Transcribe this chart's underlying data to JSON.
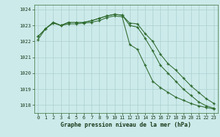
{
  "title": "Graphe pression niveau de la mer (hPa)",
  "background_color": "#cceaea",
  "grid_color": "#aacece",
  "line_color": "#2d6a2d",
  "x_values": [
    0,
    1,
    2,
    3,
    4,
    5,
    6,
    7,
    8,
    9,
    10,
    11,
    12,
    13,
    14,
    15,
    16,
    17,
    18,
    19,
    20,
    21,
    22,
    23
  ],
  "line1": [
    1022.3,
    1022.8,
    1023.2,
    1023.0,
    1023.2,
    1023.2,
    1023.2,
    1023.3,
    1023.45,
    1023.6,
    1023.7,
    1023.65,
    1023.15,
    1023.1,
    1022.5,
    1022.0,
    1021.2,
    1020.6,
    1020.2,
    1019.7,
    1019.2,
    1018.8,
    1018.4,
    1018.1
  ],
  "line2": [
    1022.3,
    1022.8,
    1023.2,
    1023.0,
    1023.2,
    1023.2,
    1023.2,
    1023.3,
    1023.45,
    1023.6,
    1023.7,
    1023.65,
    1023.0,
    1022.9,
    1022.2,
    1021.4,
    1020.5,
    1020.0,
    1019.5,
    1019.0,
    1018.6,
    1018.2,
    1017.95,
    1017.8
  ],
  "line3": [
    1022.1,
    1022.8,
    1023.15,
    1023.0,
    1023.1,
    1023.1,
    1023.15,
    1023.2,
    1023.3,
    1023.5,
    1023.6,
    1023.55,
    1021.8,
    1021.5,
    1020.5,
    1019.5,
    1019.1,
    1018.8,
    1018.5,
    1018.3,
    1018.1,
    1017.95,
    1017.85,
    1017.75
  ],
  "ylim_min": 1017.5,
  "ylim_max": 1024.3,
  "yticks": [
    1018,
    1019,
    1020,
    1021,
    1022,
    1023,
    1024
  ],
  "xticks": [
    0,
    1,
    2,
    3,
    4,
    5,
    6,
    7,
    8,
    9,
    10,
    11,
    12,
    13,
    14,
    15,
    16,
    17,
    18,
    19,
    20,
    21,
    22,
    23
  ]
}
